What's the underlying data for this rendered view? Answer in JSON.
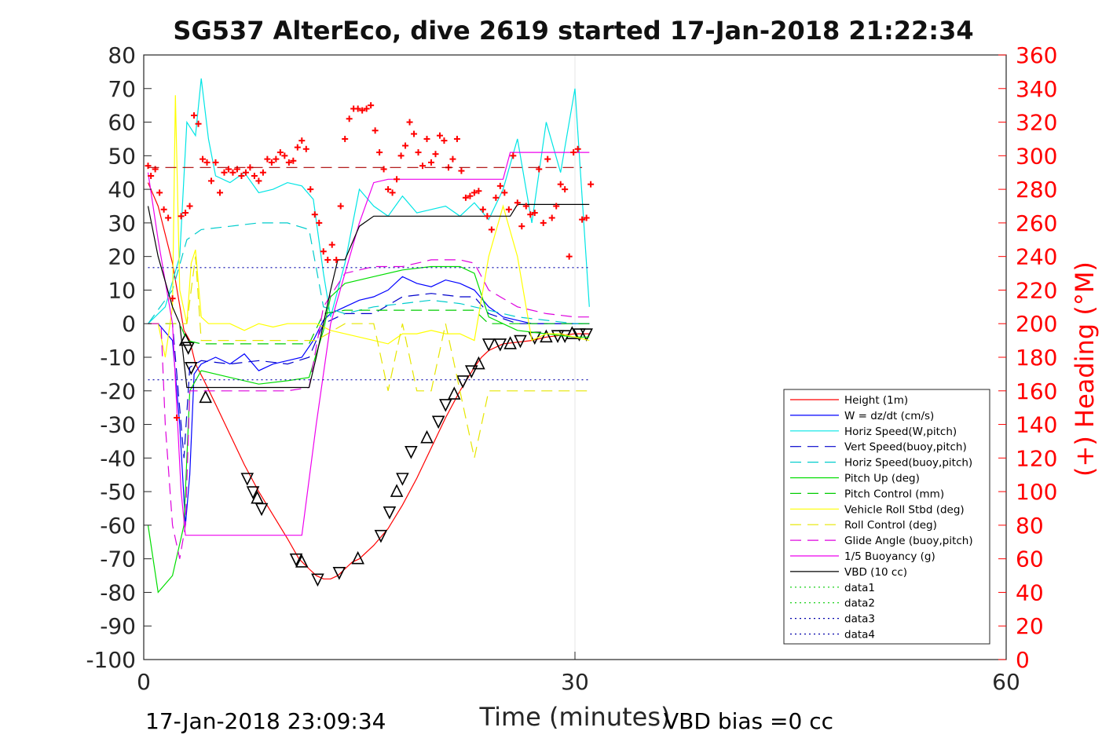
{
  "chart_data": {
    "type": "line",
    "title": "SG537 AlterEco, dive 2619 started 17-Jan-2018 21:22:34",
    "xlabel": "Time (minutes)",
    "ylabel": "",
    "y2label": "(+) Heading (°M)",
    "xlim": [
      0,
      60
    ],
    "ylim": [
      -100,
      80
    ],
    "y2lim": [
      0,
      360
    ],
    "xticks": [
      "0",
      "30",
      "60"
    ],
    "yticks": [
      "80",
      "70",
      "60",
      "50",
      "40",
      "30",
      "20",
      "10",
      "0",
      "-10",
      "-20",
      "-30",
      "-40",
      "-50",
      "-60",
      "-70",
      "-80",
      "-90",
      "-100"
    ],
    "y2ticks": [
      "360",
      "340",
      "320",
      "300",
      "280",
      "260",
      "240",
      "220",
      "200",
      "180",
      "160",
      "140",
      "120",
      "100",
      "80",
      "60",
      "40",
      "20",
      "0"
    ],
    "footer_left": "17-Jan-2018 23:09:34",
    "footer_right": "VBD bias =0 cc",
    "legend_position": "bottom-right",
    "colors": {
      "height": "#ff0000",
      "w": "#0000ff",
      "horiz_w": "#00e5e5",
      "vert_buoy": "#0000cc",
      "horiz_buoy": "#00cccc",
      "pitch": "#00dd00",
      "pitch_ctrl": "#00cc00",
      "roll": "#ffff00",
      "roll_ctrl": "#e6e600",
      "glide": "#dd00dd",
      "buoy": "#ee00ee",
      "vbd": "#000000",
      "heading": "#ff0000",
      "dotted_green": "#00cc00",
      "dotted_blue": "#0000aa"
    },
    "legend": [
      {
        "label": "Height (1m)",
        "key": "height",
        "style": "solid"
      },
      {
        "label": "W = dz/dt (cm/s)",
        "key": "w",
        "style": "solid"
      },
      {
        "label": "Horiz Speed(W,pitch)",
        "key": "horiz_w",
        "style": "solid"
      },
      {
        "label": "Vert Speed(buoy,pitch)",
        "key": "vert_buoy",
        "style": "dashed"
      },
      {
        "label": "Horiz Speed(buoy,pitch)",
        "key": "horiz_buoy",
        "style": "dashed"
      },
      {
        "label": "Pitch Up (deg)",
        "key": "pitch",
        "style": "solid"
      },
      {
        "label": "Pitch Control (mm)",
        "key": "pitch_ctrl",
        "style": "dashed"
      },
      {
        "label": "Vehicle Roll Stbd (deg)",
        "key": "roll",
        "style": "solid"
      },
      {
        "label": "Roll Control (deg)",
        "key": "roll_ctrl",
        "style": "dashed"
      },
      {
        "label": "Glide Angle (buoy,pitch)",
        "key": "glide",
        "style": "dashed"
      },
      {
        "label": "1/5 Buoyancy (g)",
        "key": "buoy",
        "style": "solid"
      },
      {
        "label": "VBD (10 cc)",
        "key": "vbd",
        "style": "solid"
      },
      {
        "label": "data1",
        "key": "dotted_green",
        "style": "dotted"
      },
      {
        "label": "data2",
        "key": "dotted_green",
        "style": "dotted"
      },
      {
        "label": "data3",
        "key": "dotted_blue",
        "style": "dotted"
      },
      {
        "label": "data4",
        "key": "dotted_blue",
        "style": "dotted"
      }
    ],
    "series": [
      {
        "key": "height",
        "style": "solid",
        "x": [
          0.3,
          1,
          2,
          2.8,
          3.2,
          3.6,
          4.2,
          5,
          6,
          7,
          8,
          9,
          10,
          10.8,
          11.5,
          12,
          12.5,
          13,
          13.5,
          14,
          14.5,
          15,
          16,
          17,
          18,
          19,
          20,
          21,
          22,
          23,
          23.5,
          24,
          25,
          26,
          27,
          28,
          29,
          30,
          31
        ],
        "y": [
          42,
          35,
          18,
          -2,
          -5,
          -12,
          -17,
          -24,
          -33,
          -42,
          -50,
          -57,
          -64,
          -70,
          -73,
          -75,
          -76,
          -76,
          -75,
          -73,
          -71,
          -70,
          -66,
          -61,
          -54,
          -46,
          -37,
          -28,
          -20,
          -13,
          -10,
          -8,
          -6,
          -5.5,
          -5,
          -4,
          -3.5,
          -3,
          -3
        ]
      },
      {
        "key": "height_triangles",
        "style": "markers",
        "x": [
          2.9,
          3.1,
          3.3,
          4.3,
          7.2,
          7.6,
          7.9,
          8.2,
          10.6,
          11,
          12.1,
          13.6,
          14.9,
          16.5,
          17.1,
          17.6,
          18,
          18.6,
          19.7,
          20.5,
          21,
          21.6,
          22.2,
          22.8,
          23.3,
          24,
          24.8,
          25.5,
          26.2,
          27.2,
          28,
          28.8,
          29.3,
          29.8,
          30.3,
          30.8
        ],
        "y": [
          -5,
          -7,
          -13,
          -22,
          -46,
          -50,
          -52,
          -55,
          -70,
          -71,
          -76,
          -74,
          -70,
          -63,
          -56,
          -50,
          -46,
          -38,
          -34,
          -29,
          -24,
          -21,
          -17,
          -14,
          -12,
          -6,
          -6,
          -6,
          -5,
          -4,
          -4,
          -3.5,
          -3.5,
          -3,
          -3,
          -3
        ]
      },
      {
        "key": "w",
        "style": "solid",
        "x": [
          0.3,
          1,
          2,
          2.5,
          2.9,
          3.2,
          3.5,
          4,
          5,
          6,
          7,
          8,
          9,
          10,
          11,
          11.8,
          12.5,
          13,
          14,
          15,
          16,
          17,
          18,
          19,
          20,
          21,
          22,
          23,
          24,
          25,
          26,
          27,
          28,
          29,
          30,
          31
        ],
        "y": [
          0,
          0,
          -5,
          -30,
          -60,
          -45,
          -15,
          -12,
          -10,
          -12,
          -9,
          -14,
          -12,
          -11,
          -10,
          -5,
          1,
          3,
          5,
          7,
          8,
          10,
          14,
          12,
          11,
          13,
          12,
          10,
          5,
          2,
          1,
          0,
          0,
          0,
          0,
          0
        ]
      },
      {
        "key": "vert_buoy",
        "style": "dashed",
        "x": [
          0.3,
          2,
          2.8,
          3.2,
          4,
          6,
          8,
          10,
          11.5,
          12.5,
          14,
          16,
          18,
          20,
          22,
          23,
          24,
          26,
          28,
          30,
          31
        ],
        "y": [
          0,
          0,
          -40,
          -13,
          -11,
          -12,
          -11,
          -12,
          -10,
          0,
          3,
          3,
          8,
          9,
          8,
          8,
          3,
          0,
          0,
          0,
          0
        ]
      },
      {
        "key": "horiz_w",
        "style": "solid",
        "x": [
          0.3,
          1.5,
          2.5,
          3,
          3.6,
          4,
          4.5,
          5,
          6,
          7,
          8,
          9,
          10,
          11,
          11.8,
          12.5,
          13,
          14,
          15,
          16,
          17,
          18,
          19,
          20,
          21,
          22,
          23,
          24,
          25,
          26,
          27,
          28,
          29,
          30,
          31
        ],
        "y": [
          0,
          5,
          20,
          60,
          56,
          73,
          55,
          44,
          42,
          45,
          39,
          40,
          42,
          41,
          37,
          15,
          2,
          18,
          40,
          35,
          32,
          38,
          33,
          34,
          35,
          32,
          36,
          31,
          40,
          55,
          30,
          60,
          45,
          70,
          5
        ]
      },
      {
        "key": "horiz_buoy",
        "style": "dashed",
        "x": [
          0.3,
          2,
          3,
          4,
          6,
          8,
          10,
          11.5,
          12.5,
          14,
          16,
          18,
          20,
          22,
          24,
          26,
          28,
          30,
          31
        ],
        "y": [
          0,
          10,
          25,
          28,
          29,
          30,
          30,
          28,
          5,
          3,
          5,
          6,
          7,
          6,
          4,
          2,
          1,
          0,
          0
        ]
      },
      {
        "key": "pitch",
        "style": "solid",
        "x": [
          0.3,
          1,
          2,
          2.8,
          3.2,
          4,
          6,
          8,
          10,
          11.5,
          12.5,
          13,
          14,
          16,
          18,
          20,
          22,
          23,
          24,
          26,
          28,
          30,
          31
        ],
        "y": [
          -60,
          -80,
          -75,
          -60,
          -20,
          -14,
          -16,
          -18,
          -17,
          -16,
          -2,
          8,
          12,
          14,
          16,
          17,
          17,
          15,
          2,
          -2,
          -3,
          -4,
          -4
        ]
      },
      {
        "key": "pitch_ctrl",
        "style": "dashed",
        "x": [
          0.3,
          2.5,
          3,
          4,
          6,
          8,
          10,
          11.5,
          12.5,
          14,
          16,
          18,
          20,
          22,
          23,
          24,
          26,
          28,
          30,
          31
        ],
        "y": [
          0,
          0,
          -5,
          -6,
          -6,
          -6,
          -6,
          -6,
          3,
          4,
          4,
          4,
          4,
          4,
          4,
          0,
          0,
          0,
          0,
          0
        ]
      },
      {
        "key": "roll",
        "style": "solid",
        "x": [
          0.3,
          1,
          1.5,
          2,
          2.2,
          2.5,
          3,
          3.3,
          3.6,
          4,
          4.5,
          5,
          6,
          7,
          8,
          9,
          10,
          11,
          12,
          13,
          14,
          15,
          16,
          17,
          18,
          19,
          20,
          21,
          22,
          23,
          24,
          25,
          26,
          27,
          28,
          29,
          30,
          31
        ],
        "y": [
          0,
          0,
          -10,
          5,
          68,
          10,
          0,
          18,
          22,
          2,
          0,
          0,
          0,
          -2,
          0,
          -1,
          0,
          0,
          0,
          -2,
          -3,
          -4,
          -5,
          -6,
          -3,
          -3,
          -2,
          -3,
          -3,
          -5,
          20,
          35,
          20,
          -5,
          -3,
          -3,
          -4,
          -5
        ]
      },
      {
        "key": "roll_ctrl",
        "style": "dashed",
        "x": [
          0.3,
          2,
          3,
          3.6,
          4,
          6,
          8,
          10,
          12,
          14,
          16,
          17,
          18,
          19,
          20,
          21,
          22,
          23,
          24,
          26,
          28,
          30,
          31
        ],
        "y": [
          0,
          0,
          0,
          20,
          -5,
          -5,
          -5,
          -5,
          -5,
          0,
          0,
          -20,
          0,
          -20,
          -20,
          0,
          -20,
          -40,
          -20,
          -20,
          -20,
          -20,
          -20
        ]
      },
      {
        "key": "glide",
        "style": "dashed",
        "x": [
          0.3,
          1.2,
          1.5,
          2,
          2.5,
          2.9,
          3.2,
          4,
          6,
          8,
          10,
          11.5,
          12.5,
          14,
          16,
          18,
          20,
          22,
          23,
          24,
          26,
          28,
          30,
          31
        ],
        "y": [
          0,
          0,
          -30,
          -60,
          -70,
          -60,
          -20,
          -20,
          -20,
          -20,
          -20,
          -19,
          5,
          15,
          17,
          17,
          19,
          19,
          18,
          10,
          5,
          3,
          2,
          2
        ]
      },
      {
        "key": "buoy",
        "style": "solid",
        "x": [
          0.3,
          1,
          2,
          2.6,
          2.9,
          3.4,
          5,
          8,
          10,
          11,
          12,
          13,
          14,
          15,
          16,
          17,
          18,
          20,
          22,
          24,
          25,
          25.5,
          26,
          28,
          30,
          31
        ],
        "y": [
          45,
          25,
          0,
          -50,
          -63,
          -63,
          -63,
          -63,
          -63,
          -63,
          -30,
          0,
          15,
          30,
          42,
          43,
          43,
          43,
          43,
          43,
          43,
          51,
          51,
          51,
          51,
          51
        ]
      },
      {
        "key": "vbd",
        "style": "solid",
        "x": [
          0.3,
          1,
          2,
          2.5,
          3,
          3.2,
          5,
          8,
          10,
          11,
          11.5,
          12,
          12.5,
          13,
          13.5,
          14,
          15,
          16,
          17,
          18,
          20,
          22,
          24,
          25.5,
          26,
          28,
          30,
          31
        ],
        "y": [
          35,
          20,
          5,
          0,
          -19,
          -19,
          -19,
          -19,
          -19,
          -19,
          -19,
          -10,
          0,
          10,
          19,
          19,
          29,
          32,
          32,
          32,
          32,
          32,
          32,
          32,
          35.5,
          35.5,
          35.5,
          35.5
        ]
      },
      {
        "key": "heading_marks",
        "style": "plus",
        "x": [
          0.3,
          0.5,
          0.8,
          1.1,
          1.4,
          1.7,
          2,
          2.3,
          2.6,
          2.9,
          3.2,
          3.5,
          3.8,
          4.1,
          4.4,
          4.7,
          5,
          5.3,
          5.6,
          5.9,
          6.2,
          6.5,
          6.8,
          7.1,
          7.4,
          7.7,
          8,
          8.3,
          8.6,
          8.9,
          9.2,
          9.5,
          9.8,
          10.1,
          10.4,
          10.7,
          11,
          11.3,
          11.6,
          11.9,
          12.2,
          12.5,
          12.8,
          13.1,
          13.4,
          13.7,
          14,
          14.3,
          14.6,
          14.9,
          15.2,
          15.5,
          15.8,
          16.1,
          16.4,
          16.7,
          17,
          17.3,
          17.6,
          17.9,
          18.2,
          18.5,
          18.8,
          19.1,
          19.4,
          19.7,
          20,
          20.3,
          20.6,
          20.9,
          21.2,
          21.5,
          21.8,
          22.1,
          22.4,
          22.7,
          23,
          23.3,
          23.6,
          23.9,
          24.2,
          24.5,
          24.8,
          25.1,
          25.4,
          25.7,
          26,
          26.3,
          26.6,
          26.9,
          27.2,
          27.5,
          27.8,
          28.1,
          28.4,
          28.7,
          29,
          29.3,
          29.6,
          29.9,
          30.2,
          30.5,
          30.8,
          31.1
        ],
        "y": [
          294,
          288,
          292,
          278,
          268,
          263,
          215,
          144,
          264,
          266,
          270,
          324,
          319,
          298,
          296,
          285,
          296,
          278,
          290,
          292,
          290,
          292,
          288,
          290,
          293,
          288,
          285,
          290,
          298,
          296,
          298,
          302,
          300,
          296,
          297,
          305,
          309,
          304,
          280,
          265,
          260,
          243,
          238,
          247,
          238,
          270,
          310,
          322,
          328,
          328,
          327,
          328,
          330,
          315,
          302,
          292,
          280,
          278,
          286,
          300,
          306,
          320,
          313,
          302,
          294,
          310,
          296,
          301,
          312,
          309,
          293,
          298,
          310,
          291,
          275,
          276,
          278,
          279,
          268,
          264,
          256,
          275,
          282,
          278,
          268,
          300,
          272,
          258,
          270,
          265,
          266,
          292,
          260,
          298,
          263,
          270,
          283,
          280,
          240,
          302,
          304,
          262,
          263,
          283
        ]
      },
      {
        "key": "heading_dashed",
        "style": "dashed",
        "x": [
          0.3,
          30.5
        ],
        "y": [
          46.5,
          46.5
        ]
      },
      {
        "key": "dotted_blue",
        "style": "dotted",
        "x": [
          0.3,
          31
        ],
        "y": [
          16.7,
          16.7
        ]
      },
      {
        "key": "dotted_blue",
        "style": "dotted",
        "x": [
          0.3,
          31
        ],
        "y": [
          -16.7,
          -16.7
        ]
      }
    ]
  }
}
